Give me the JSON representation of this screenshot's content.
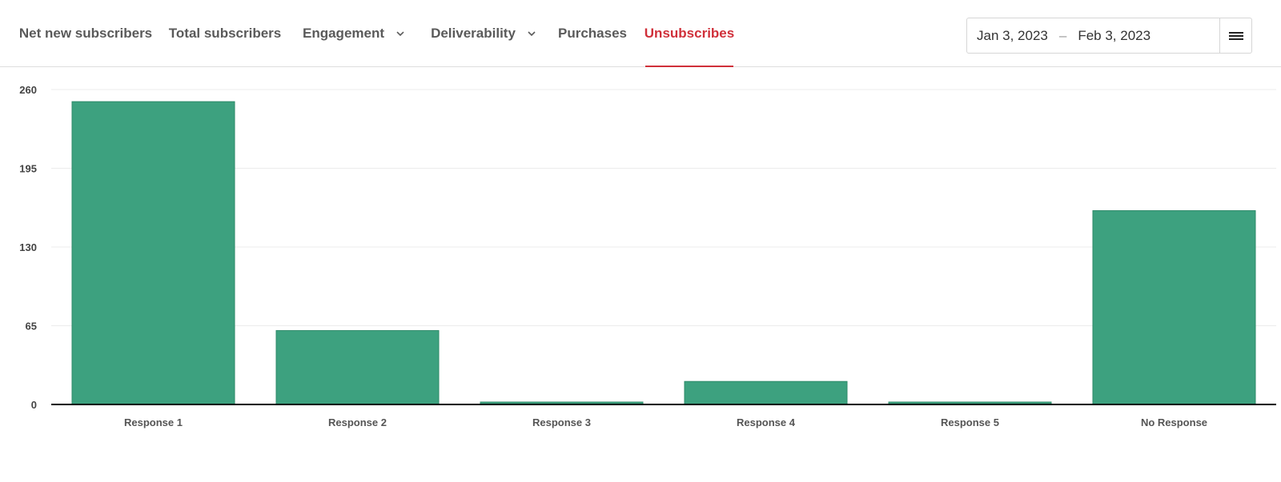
{
  "tabs": [
    {
      "label": "Net new subscribers",
      "has_dropdown": false,
      "active": false
    },
    {
      "label": "Total subscribers",
      "has_dropdown": false,
      "active": false
    },
    {
      "label": "Engagement",
      "has_dropdown": true,
      "active": false
    },
    {
      "label": "Deliverability",
      "has_dropdown": true,
      "active": false
    },
    {
      "label": "Purchases",
      "has_dropdown": false,
      "active": false
    },
    {
      "label": "Unsubscribes",
      "has_dropdown": false,
      "active": true
    }
  ],
  "date_range": {
    "start": "Jan 3, 2023",
    "separator": "–",
    "end": "Feb 3, 2023"
  },
  "icons": {
    "chevron": "chevron-down-icon",
    "menu": "hamburger-menu-icon"
  },
  "colors": {
    "accent": "#d0303a",
    "bar": "#3da17f",
    "bar_stroke": "#2e8a6a",
    "grid": "#ececec",
    "axis": "#000000"
  },
  "chart_data": {
    "type": "bar",
    "categories": [
      "Response 1",
      "Response 2",
      "Response 3",
      "Response 4",
      "Response 5",
      "No Response"
    ],
    "values": [
      250,
      61,
      2,
      19,
      2,
      160
    ],
    "yticks": [
      0,
      65,
      130,
      195,
      260
    ],
    "ylim": [
      0,
      260
    ],
    "title": "",
    "xlabel": "",
    "ylabel": "",
    "grid": true,
    "legend": "none"
  }
}
